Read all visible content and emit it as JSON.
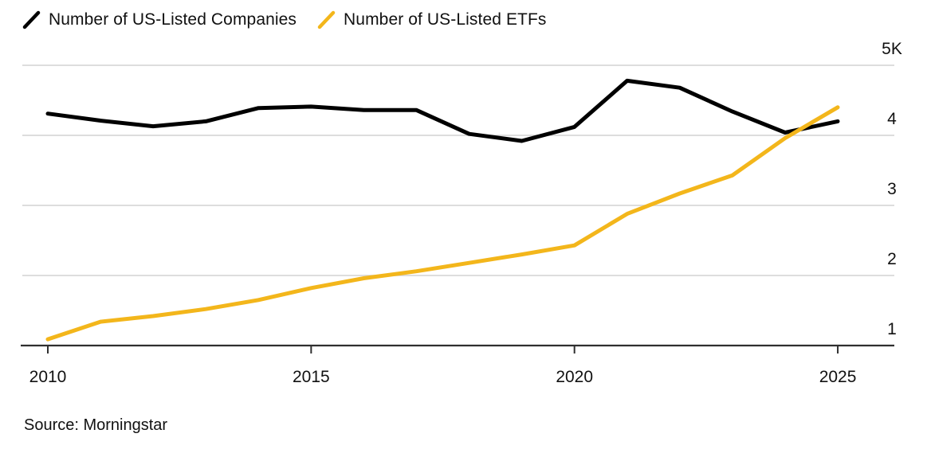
{
  "legend": {
    "items": [
      {
        "label": "Number of US-Listed Companies",
        "color": "#000000"
      },
      {
        "label": "Number of US-Listed ETFs",
        "color": "#F3B61B"
      }
    ]
  },
  "source": "Source: Morningstar",
  "colors": {
    "companies_line": "#000000",
    "etfs_line": "#F3B61B",
    "gridline": "#D8D8D8",
    "axis": "#2F2F2F",
    "text": "#111111",
    "background": "#FFFFFF"
  },
  "chart_data": {
    "type": "line",
    "x": [
      2010,
      2011,
      2012,
      2013,
      2014,
      2015,
      2016,
      2017,
      2018,
      2019,
      2020,
      2021,
      2022,
      2023,
      2024,
      2025
    ],
    "series": [
      {
        "id": "us-listed-companies",
        "name": "Number of US-Listed Companies",
        "color": "#000000",
        "values": [
          4310,
          4210,
          4130,
          4200,
          4390,
          4410,
          4360,
          4360,
          4020,
          3920,
          4120,
          4780,
          4680,
          4340,
          4040,
          4200
        ]
      },
      {
        "id": "us-listed-etfs",
        "name": "Number of US-Listed ETFs",
        "color": "#F3B61B",
        "values": [
          1090,
          1340,
          1420,
          1520,
          1650,
          1820,
          1960,
          2060,
          2180,
          2300,
          2430,
          2880,
          3170,
          3430,
          3960,
          4400
        ]
      }
    ],
    "xticks": [
      2010,
      2015,
      2020,
      2025
    ],
    "yticks": [
      {
        "value": 5000,
        "label": "5K"
      },
      {
        "value": 4000,
        "label": "4"
      },
      {
        "value": 3000,
        "label": "3"
      },
      {
        "value": 2000,
        "label": "2"
      },
      {
        "value": 1000,
        "label": "1"
      }
    ],
    "xlim": [
      2010,
      2025
    ],
    "ylim": [
      1000,
      5000
    ],
    "grid": "horizontal",
    "legend_position": "top-left",
    "title": "",
    "xlabel": "",
    "ylabel": "",
    "source": "Source: Morningstar"
  }
}
